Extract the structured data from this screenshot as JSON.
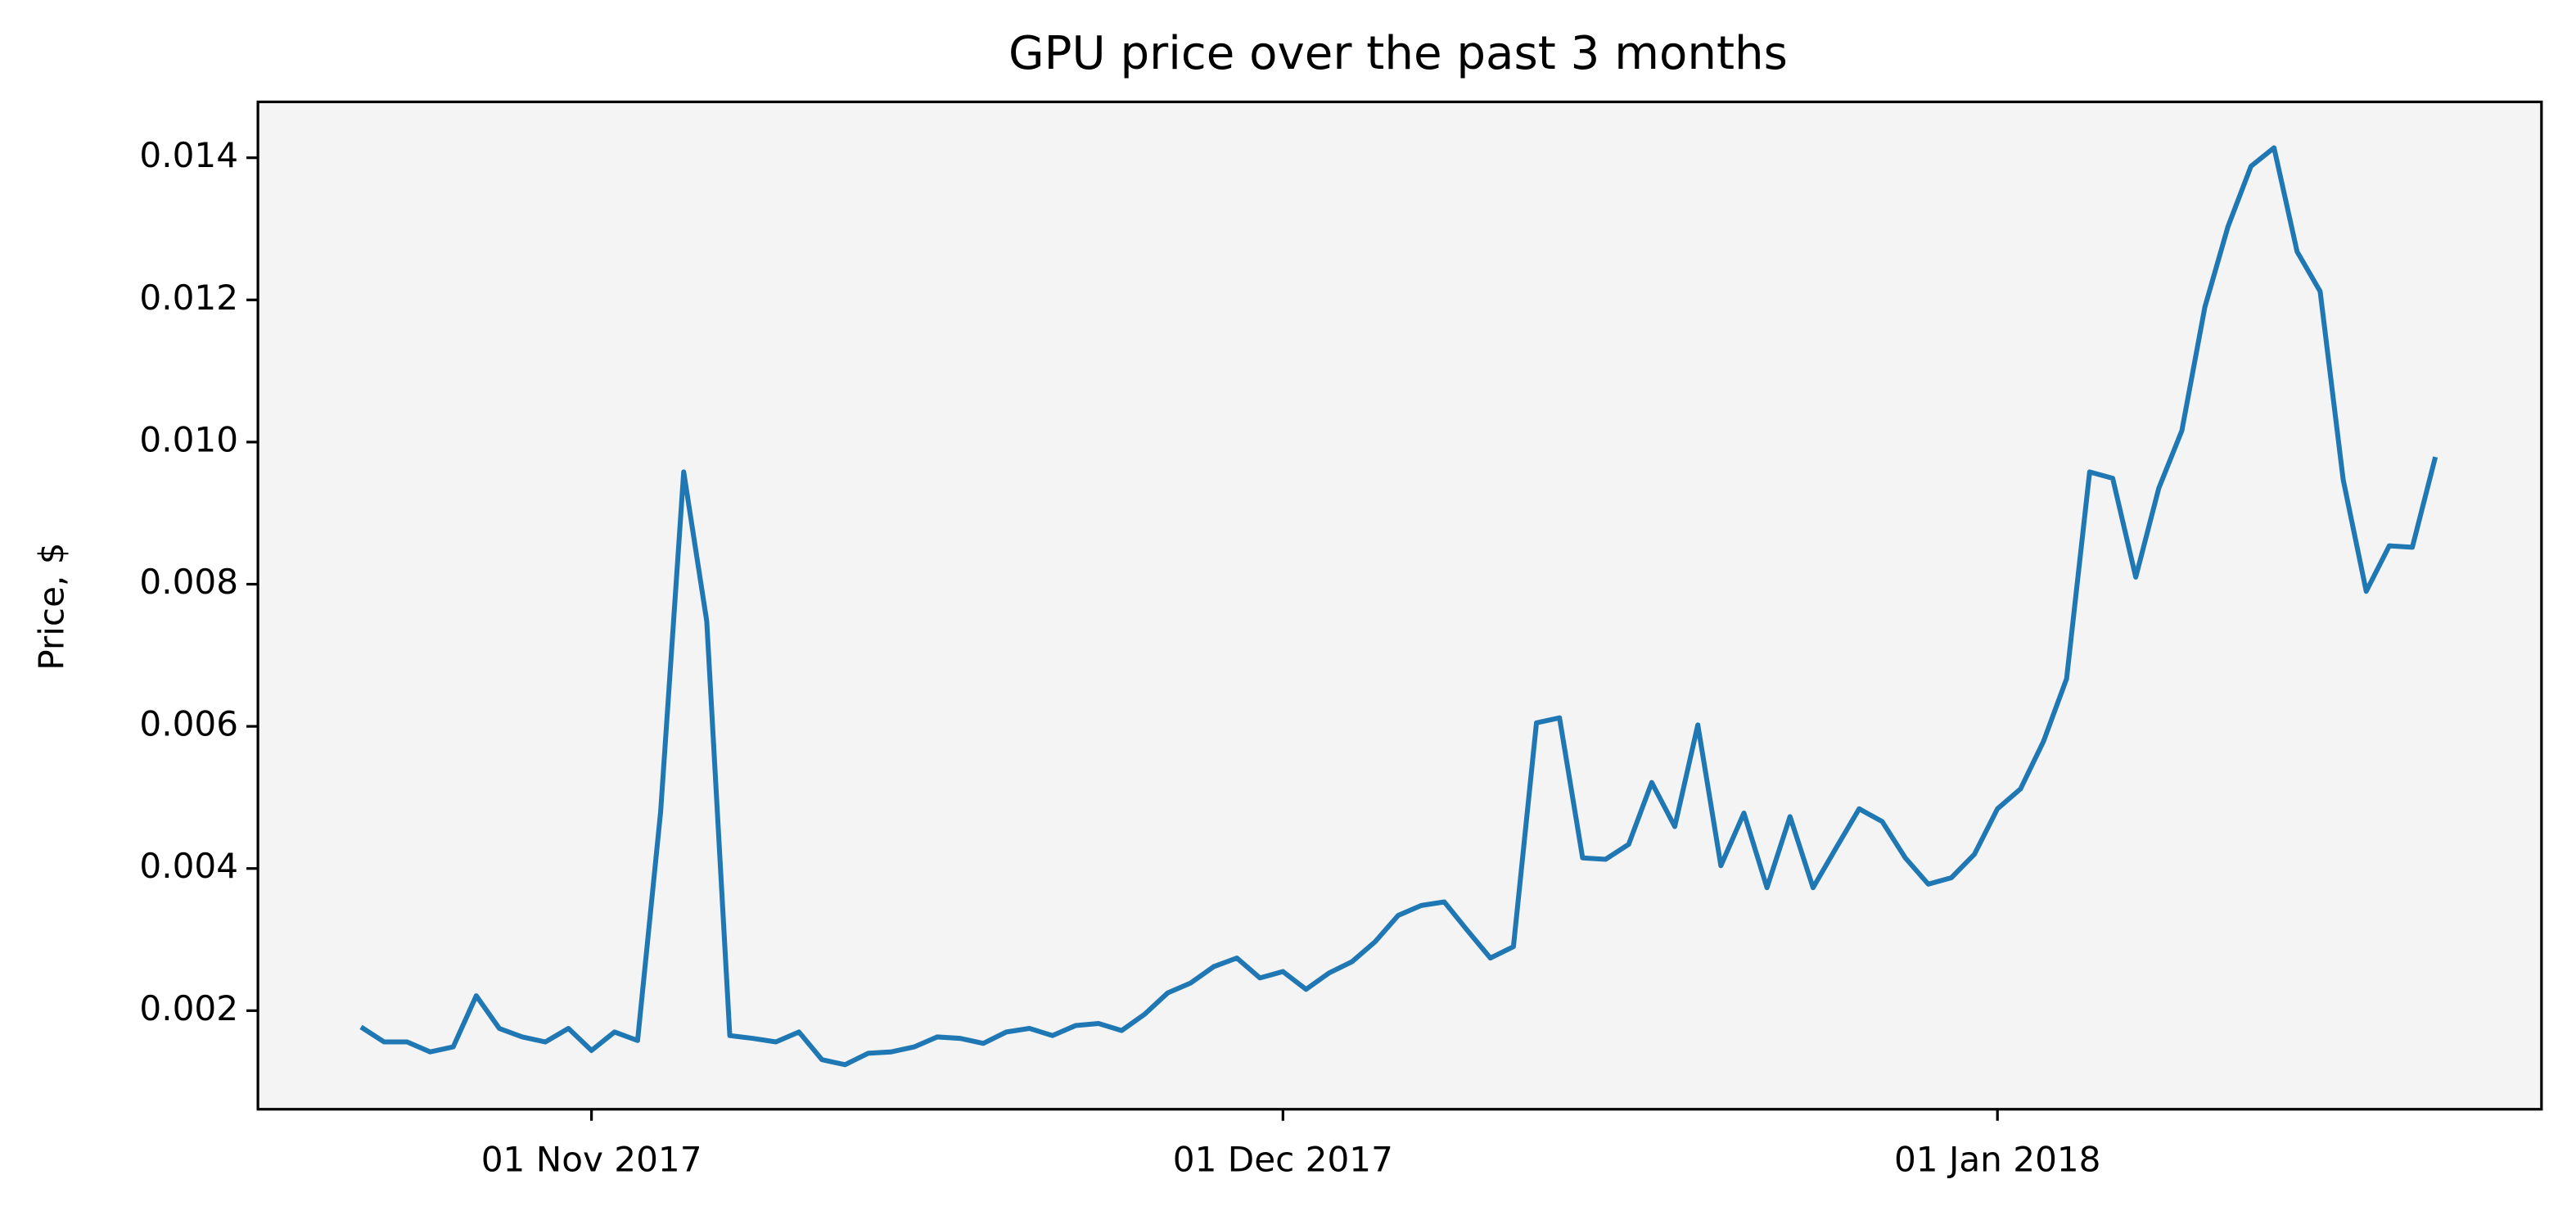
{
  "chart_data": {
    "type": "line",
    "title": "GPU price over the past 3 months",
    "ylabel": "Price, $",
    "color": "#1f77b4",
    "background": "#f4f4f4",
    "x": [
      "2017-10-22",
      "2017-10-23",
      "2017-10-24",
      "2017-10-25",
      "2017-10-26",
      "2017-10-27",
      "2017-10-28",
      "2017-10-29",
      "2017-10-30",
      "2017-10-31",
      "2017-11-01",
      "2017-11-02",
      "2017-11-03",
      "2017-11-04",
      "2017-11-05",
      "2017-11-06",
      "2017-11-07",
      "2017-11-08",
      "2017-11-09",
      "2017-11-10",
      "2017-11-11",
      "2017-11-12",
      "2017-11-13",
      "2017-11-14",
      "2017-11-15",
      "2017-11-16",
      "2017-11-17",
      "2017-11-18",
      "2017-11-19",
      "2017-11-20",
      "2017-11-21",
      "2017-11-22",
      "2017-11-23",
      "2017-11-24",
      "2017-11-25",
      "2017-11-26",
      "2017-11-27",
      "2017-11-28",
      "2017-11-29",
      "2017-11-30",
      "2017-12-01",
      "2017-12-02",
      "2017-12-03",
      "2017-12-04",
      "2017-12-05",
      "2017-12-06",
      "2017-12-07",
      "2017-12-08",
      "2017-12-09",
      "2017-12-10",
      "2017-12-11",
      "2017-12-12",
      "2017-12-13",
      "2017-12-14",
      "2017-12-15",
      "2017-12-16",
      "2017-12-17",
      "2017-12-18",
      "2017-12-19",
      "2017-12-20",
      "2017-12-21",
      "2017-12-22",
      "2017-12-23",
      "2017-12-24",
      "2017-12-25",
      "2017-12-26",
      "2017-12-27",
      "2017-12-28",
      "2017-12-29",
      "2017-12-30",
      "2017-12-31",
      "2018-01-01",
      "2018-01-02",
      "2018-01-03",
      "2018-01-04",
      "2018-01-05",
      "2018-01-06",
      "2018-01-07",
      "2018-01-08",
      "2018-01-09",
      "2018-01-10",
      "2018-01-11",
      "2018-01-12",
      "2018-01-13",
      "2018-01-14",
      "2018-01-15",
      "2018-01-16",
      "2018-01-17",
      "2018-01-18",
      "2018-01-19",
      "2018-01-20"
    ],
    "values": [
      0.00177,
      0.00156,
      0.00156,
      0.00142,
      0.00149,
      0.00221,
      0.00175,
      0.00163,
      0.00156,
      0.00175,
      0.00144,
      0.0017,
      0.00158,
      0.0048,
      0.00958,
      0.00748,
      0.00165,
      0.00161,
      0.00156,
      0.0017,
      0.00131,
      0.00124,
      0.0014,
      0.00142,
      0.00149,
      0.00163,
      0.00161,
      0.00154,
      0.0017,
      0.00175,
      0.00165,
      0.00179,
      0.00182,
      0.00172,
      0.00195,
      0.00225,
      0.00239,
      0.00262,
      0.00274,
      0.00246,
      0.00255,
      0.0023,
      0.00253,
      0.00269,
      0.00297,
      0.00334,
      0.00348,
      0.00353,
      0.00313,
      0.00274,
      0.0029,
      0.00605,
      0.00612,
      0.00415,
      0.00413,
      0.00434,
      0.00521,
      0.00459,
      0.00602,
      0.00404,
      0.00478,
      0.00373,
      0.00473,
      0.00373,
      0.00429,
      0.00484,
      0.00466,
      0.00415,
      0.00378,
      0.00387,
      0.0042,
      0.00484,
      0.00512,
      0.00579,
      0.00667,
      0.00958,
      0.00949,
      0.0081,
      0.00935,
      0.01016,
      0.0119,
      0.01303,
      0.01388,
      0.01414,
      0.01268,
      0.01212,
      0.00947,
      0.0079,
      0.00854,
      0.00852,
      0.00979
    ],
    "xlim": [
      "2017-10-17T12:40:00Z",
      "2018-01-24T14:30:00Z"
    ],
    "xticks": [
      {
        "value": "2017-11-01",
        "label": "01 Nov 2017"
      },
      {
        "value": "2017-12-01",
        "label": "01 Dec 2017"
      },
      {
        "value": "2018-01-01",
        "label": "01 Jan 2018"
      }
    ],
    "ylim": [
      0.000613,
      0.014786
    ],
    "yticks": [
      0.002,
      0.004,
      0.006,
      0.008,
      {
        "value": 0.01,
        "label": "0.010"
      },
      0.012,
      0.014
    ]
  }
}
